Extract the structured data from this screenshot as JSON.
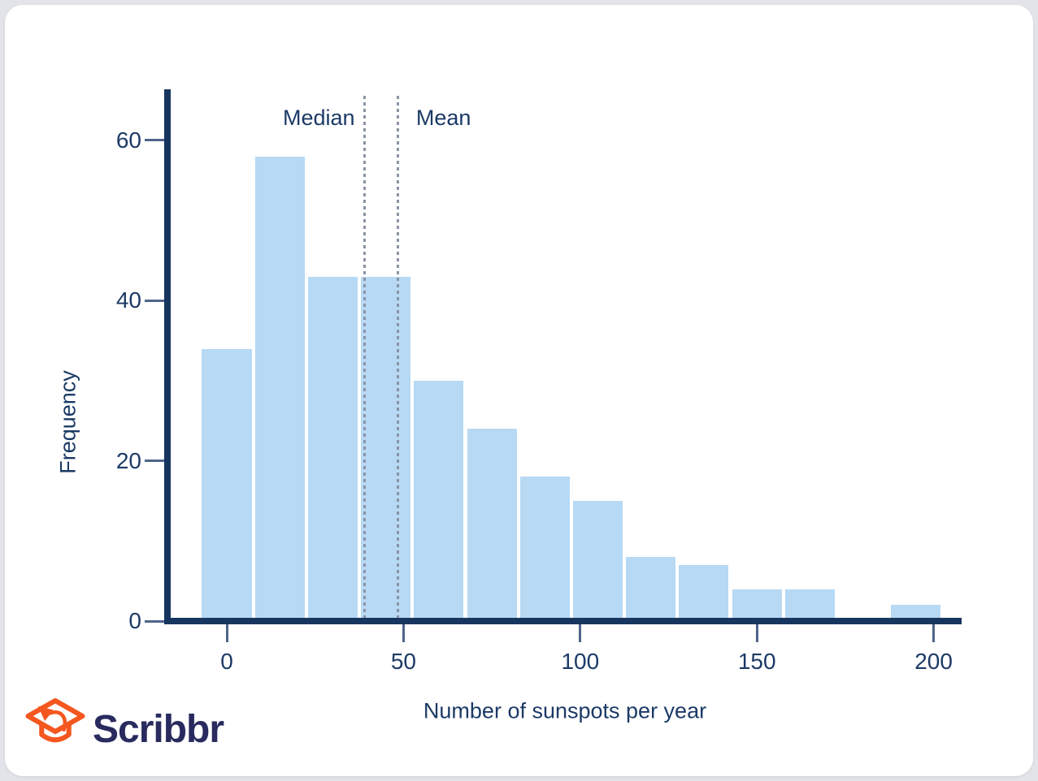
{
  "page": {
    "background_color": "#e3e4e9",
    "card_color": "#ffffff"
  },
  "branding": {
    "name": "Scribbr",
    "icon": "graduation-cap-arrow",
    "icon_color": "#f4571f",
    "wordmark_color": "#292a5e"
  },
  "chart_data": {
    "type": "bar",
    "subtype": "histogram",
    "title": "",
    "xlabel": "Number of sunspots per year",
    "ylabel": "Frequency",
    "bin_width": 15,
    "bin_centers": [
      0,
      15,
      30,
      45,
      60,
      75,
      90,
      105,
      120,
      135,
      150,
      165,
      180,
      195
    ],
    "frequencies": [
      34,
      58,
      43,
      43,
      30,
      24,
      18,
      15,
      8,
      7,
      4,
      4,
      0,
      2
    ],
    "x_ticks": [
      0,
      50,
      100,
      150,
      200
    ],
    "y_ticks": [
      0,
      20,
      40,
      60
    ],
    "xlim": [
      -17,
      208
    ],
    "ylim": [
      0,
      66
    ],
    "grid": "off",
    "legend": "none",
    "skew": "right-skewed distribution",
    "annotations": [
      {
        "label": "Median",
        "x": 39,
        "line_style": "dotted",
        "label_side": "left"
      },
      {
        "label": "Mean",
        "x": 48.5,
        "line_style": "dotted",
        "label_side": "right"
      }
    ],
    "colors": {
      "bar": "#b7d9f4",
      "axis": "#17365f",
      "tick": "#4f648a",
      "label": "#1b3a66",
      "annotation_line": "#8b93a6"
    }
  }
}
